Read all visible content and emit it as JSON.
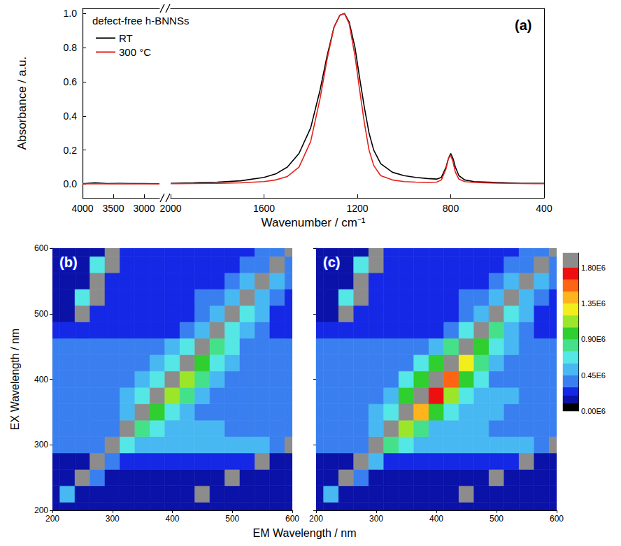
{
  "chart_data": [
    {
      "type": "line",
      "panel": "(a)",
      "xlabel": "Wavenumber / cm⁻¹",
      "ylabel": "Absorbance / a.u.",
      "xlim": [
        4000,
        400
      ],
      "x_break": [
        2750,
        2000
      ],
      "xticks": [
        4000,
        3500,
        3000,
        2000,
        1600,
        1200,
        800,
        400
      ],
      "ylim": [
        -0.08,
        1.03
      ],
      "yticks": [
        {
          "value": 0,
          "label": "0.0"
        },
        0.2,
        0.4,
        0.6,
        0.8,
        {
          "value": 1,
          "label": "1.0"
        }
      ],
      "legend_title": "defect-free h-BNNSs",
      "legend": "upper left",
      "series": [
        {
          "name": "RT",
          "color": "#000000",
          "x": [
            4000,
            3800,
            3600,
            3400,
            3200,
            3000,
            2800,
            2750,
            2000,
            1900,
            1800,
            1700,
            1600,
            1550,
            1500,
            1450,
            1400,
            1360,
            1330,
            1300,
            1275,
            1255,
            1235,
            1210,
            1190,
            1170,
            1150,
            1130,
            1100,
            1050,
            1000,
            950,
            900,
            860,
            840,
            820,
            810,
            800,
            790,
            780,
            765,
            740,
            700,
            600,
            500,
            400
          ],
          "values": [
            0.003,
            0.008,
            0.004,
            0.005,
            0.004,
            0.004,
            0.003,
            0.003,
            0.005,
            0.008,
            0.012,
            0.02,
            0.04,
            0.06,
            0.1,
            0.18,
            0.33,
            0.55,
            0.75,
            0.92,
            0.99,
            1.0,
            0.95,
            0.8,
            0.62,
            0.45,
            0.3,
            0.2,
            0.12,
            0.07,
            0.05,
            0.04,
            0.033,
            0.03,
            0.04,
            0.1,
            0.15,
            0.18,
            0.15,
            0.1,
            0.05,
            0.025,
            0.015,
            0.01,
            0.005,
            0.005
          ]
        },
        {
          "name": "300 °C",
          "color": "#e3211c",
          "x": [
            4000,
            3800,
            3600,
            3400,
            3200,
            3000,
            2800,
            2750,
            2000,
            1900,
            1800,
            1700,
            1600,
            1550,
            1500,
            1450,
            1400,
            1360,
            1330,
            1300,
            1275,
            1255,
            1235,
            1210,
            1190,
            1170,
            1150,
            1130,
            1100,
            1050,
            1000,
            950,
            900,
            860,
            840,
            820,
            810,
            800,
            790,
            780,
            765,
            740,
            700,
            600,
            500,
            400
          ],
          "values": [
            0.002,
            0.003,
            0.002,
            0.003,
            0.002,
            0.002,
            0.002,
            0.002,
            0.003,
            0.004,
            0.005,
            0.008,
            0.015,
            0.025,
            0.045,
            0.1,
            0.25,
            0.5,
            0.73,
            0.92,
            0.99,
            1.0,
            0.94,
            0.75,
            0.55,
            0.36,
            0.2,
            0.11,
            0.05,
            0.025,
            0.015,
            0.012,
            0.01,
            0.012,
            0.025,
            0.09,
            0.15,
            0.17,
            0.13,
            0.07,
            0.03,
            0.015,
            0.01,
            0.006,
            0.004,
            0.003
          ]
        }
      ]
    },
    {
      "type": "heatmap",
      "panel": "(b)",
      "xlabel": "EM Wavelength / nm",
      "ylabel": "EX Wavelength / nm",
      "xlim": [
        200,
        600
      ],
      "ylim": [
        200,
        600
      ],
      "xticks": [
        200,
        300,
        400,
        500,
        600
      ],
      "yticks": [
        200,
        300,
        400,
        500,
        600
      ],
      "x": [
        200,
        225,
        250,
        275,
        300,
        325,
        350,
        375,
        400,
        425,
        450,
        475,
        500,
        525,
        550,
        575,
        600
      ],
      "y": [
        200,
        225,
        250,
        275,
        300,
        325,
        350,
        375,
        400,
        425,
        450,
        475,
        500,
        525,
        550,
        575,
        600
      ],
      "cells": [
        [
          120000,
          130000,
          150000,
          150000,
          150000,
          150000,
          150000,
          150000,
          150000,
          150000,
          150000,
          150000,
          150000,
          150000,
          150000,
          150000,
          150000
        ],
        [
          130000,
          500000,
          150000,
          150000,
          150000,
          150000,
          150000,
          150000,
          150000,
          150000,
          1900000,
          150000,
          150000,
          150000,
          150000,
          150000,
          150000
        ],
        [
          150000,
          150000,
          2000000,
          300000,
          180000,
          180000,
          180000,
          180000,
          180000,
          180000,
          180000,
          150000,
          2000000,
          150000,
          150000,
          150000,
          150000
        ],
        [
          150000,
          150000,
          150000,
          2000000,
          400000,
          250000,
          250000,
          250000,
          250000,
          250000,
          250000,
          250000,
          250000,
          200000,
          2000000,
          150000,
          150000
        ],
        [
          350000,
          350000,
          350000,
          350000,
          2000000,
          700000,
          550000,
          450000,
          450000,
          450000,
          450000,
          450000,
          450000,
          450000,
          450000,
          350000,
          2000000
        ],
        [
          380000,
          380000,
          380000,
          380000,
          380000,
          2000000,
          800000,
          600000,
          450000,
          450000,
          450000,
          450000,
          380000,
          380000,
          380000,
          380000,
          380000
        ],
        [
          380000,
          380000,
          380000,
          380000,
          420000,
          550000,
          2000000,
          950000,
          700000,
          500000,
          420000,
          420000,
          420000,
          350000,
          350000,
          350000,
          350000
        ],
        [
          380000,
          380000,
          380000,
          380000,
          380000,
          450000,
          650000,
          2000000,
          1050000,
          750000,
          520000,
          420000,
          420000,
          420000,
          350000,
          350000,
          350000
        ],
        [
          380000,
          380000,
          380000,
          380000,
          380000,
          380000,
          480000,
          700000,
          2000000,
          1100000,
          800000,
          520000,
          400000,
          400000,
          400000,
          330000,
          330000
        ],
        [
          360000,
          360000,
          360000,
          360000,
          360000,
          360000,
          360000,
          500000,
          720000,
          2000000,
          1000000,
          720000,
          480000,
          330000,
          330000,
          330000,
          330000
        ],
        [
          330000,
          330000,
          330000,
          300000,
          300000,
          300000,
          300000,
          300000,
          480000,
          650000,
          2000000,
          850000,
          600000,
          420000,
          300000,
          300000,
          300000
        ],
        [
          250000,
          250000,
          250000,
          250000,
          250000,
          250000,
          250000,
          250000,
          250000,
          400000,
          560000,
          2000000,
          700000,
          500000,
          350000,
          250000,
          250000
        ],
        [
          180000,
          180000,
          2000000,
          250000,
          250000,
          250000,
          250000,
          250000,
          250000,
          250000,
          380000,
          500000,
          2000000,
          620000,
          450000,
          260000,
          260000
        ],
        [
          180000,
          180000,
          600000,
          1900000,
          230000,
          230000,
          230000,
          230000,
          230000,
          230000,
          300000,
          380000,
          520000,
          2000000,
          550000,
          380000,
          250000
        ],
        [
          180000,
          180000,
          180000,
          2000000,
          220000,
          220000,
          220000,
          220000,
          220000,
          220000,
          220000,
          220000,
          300000,
          450000,
          2000000,
          480000,
          300000
        ],
        [
          180000,
          180000,
          180000,
          600000,
          1900000,
          200000,
          200000,
          200000,
          200000,
          200000,
          200000,
          200000,
          200000,
          300000,
          420000,
          2000000,
          420000
        ],
        [
          180000,
          180000,
          180000,
          180000,
          2000000,
          200000,
          200000,
          200000,
          200000,
          200000,
          200000,
          200000,
          200000,
          200000,
          300000,
          420000,
          2000000
        ]
      ]
    },
    {
      "type": "heatmap",
      "panel": "(c)",
      "xlim": [
        200,
        600
      ],
      "ylim": [
        200,
        600
      ],
      "xticks": [
        200,
        300,
        400,
        500,
        600
      ],
      "yticks": [
        200,
        300,
        400,
        500,
        600
      ],
      "tick_labels": "x",
      "x": [
        200,
        225,
        250,
        275,
        300,
        325,
        350,
        375,
        400,
        425,
        450,
        475,
        500,
        525,
        550,
        575,
        600
      ],
      "y": [
        200,
        225,
        250,
        275,
        300,
        325,
        350,
        375,
        400,
        425,
        450,
        475,
        500,
        525,
        550,
        575,
        600
      ],
      "cells": [
        [
          120000,
          130000,
          150000,
          150000,
          150000,
          150000,
          150000,
          150000,
          150000,
          150000,
          150000,
          150000,
          150000,
          150000,
          150000,
          150000,
          150000
        ],
        [
          130000,
          500000,
          150000,
          150000,
          150000,
          150000,
          150000,
          150000,
          150000,
          150000,
          1900000,
          150000,
          150000,
          150000,
          150000,
          150000,
          150000
        ],
        [
          150000,
          150000,
          2000000,
          300000,
          180000,
          180000,
          180000,
          180000,
          180000,
          180000,
          180000,
          150000,
          2000000,
          150000,
          150000,
          150000,
          150000
        ],
        [
          150000,
          150000,
          150000,
          2000000,
          450000,
          270000,
          270000,
          270000,
          270000,
          270000,
          270000,
          270000,
          270000,
          200000,
          2000000,
          150000,
          150000
        ],
        [
          380000,
          380000,
          380000,
          380000,
          2000000,
          850000,
          650000,
          480000,
          480000,
          480000,
          480000,
          480000,
          480000,
          480000,
          480000,
          380000,
          2000000
        ],
        [
          400000,
          400000,
          400000,
          400000,
          450000,
          2000000,
          1100000,
          750000,
          500000,
          500000,
          500000,
          500000,
          400000,
          400000,
          400000,
          400000,
          400000
        ],
        [
          400000,
          400000,
          400000,
          400000,
          480000,
          700000,
          2000000,
          1450000,
          950000,
          600000,
          450000,
          450000,
          450000,
          380000,
          380000,
          380000,
          380000
        ],
        [
          400000,
          400000,
          400000,
          400000,
          400000,
          550000,
          950000,
          2000000,
          1650000,
          1050000,
          650000,
          450000,
          450000,
          450000,
          380000,
          380000,
          380000
        ],
        [
          400000,
          400000,
          400000,
          400000,
          400000,
          400000,
          600000,
          1000000,
          2000000,
          1550000,
          1000000,
          620000,
          430000,
          430000,
          430000,
          350000,
          350000
        ],
        [
          380000,
          380000,
          380000,
          380000,
          380000,
          380000,
          380000,
          600000,
          900000,
          2000000,
          1250000,
          850000,
          550000,
          350000,
          350000,
          350000,
          350000
        ],
        [
          320000,
          320000,
          320000,
          320000,
          320000,
          320000,
          320000,
          320000,
          550000,
          750000,
          2000000,
          950000,
          650000,
          450000,
          320000,
          320000,
          320000
        ],
        [
          260000,
          260000,
          260000,
          260000,
          260000,
          260000,
          260000,
          260000,
          260000,
          420000,
          600000,
          2000000,
          750000,
          520000,
          360000,
          260000,
          260000
        ],
        [
          180000,
          180000,
          2000000,
          250000,
          250000,
          250000,
          250000,
          250000,
          250000,
          250000,
          380000,
          500000,
          2000000,
          620000,
          450000,
          260000,
          260000
        ],
        [
          180000,
          180000,
          600000,
          1900000,
          230000,
          230000,
          230000,
          230000,
          230000,
          230000,
          300000,
          380000,
          520000,
          2000000,
          550000,
          380000,
          250000
        ],
        [
          180000,
          180000,
          180000,
          2000000,
          220000,
          220000,
          220000,
          220000,
          220000,
          220000,
          220000,
          220000,
          300000,
          450000,
          2000000,
          480000,
          300000
        ],
        [
          180000,
          180000,
          180000,
          600000,
          1900000,
          200000,
          200000,
          200000,
          200000,
          200000,
          200000,
          200000,
          200000,
          300000,
          420000,
          2000000,
          420000
        ],
        [
          180000,
          180000,
          180000,
          180000,
          2000000,
          200000,
          200000,
          200000,
          200000,
          200000,
          200000,
          200000,
          200000,
          200000,
          300000,
          420000,
          2000000
        ]
      ],
      "colorbar": {
        "range": [
          0,
          1980000
        ],
        "ticks": [
          {
            "value": 0,
            "label": "0.00E6"
          },
          {
            "value": 450000,
            "label": "0.45E6"
          },
          {
            "value": 900000,
            "label": "0.90E6"
          },
          {
            "value": 1350000,
            "label": "1.35E6"
          },
          {
            "value": 1800000,
            "label": "1.80E6"
          }
        ],
        "levels": [
          0,
          100000,
          200000,
          300000,
          450000,
          600000,
          750000,
          900000,
          1050000,
          1200000,
          1350000,
          1500000,
          1650000,
          1800000
        ],
        "colors": [
          "#000000",
          "#0b12a8",
          "#1428e6",
          "#3a7ff0",
          "#48b8f2",
          "#55e6e6",
          "#45e08a",
          "#2ecf2e",
          "#9be62a",
          "#f2ee1e",
          "#ffb41e",
          "#ff6414",
          "#ee1010",
          "#8c8c8c"
        ]
      }
    }
  ]
}
